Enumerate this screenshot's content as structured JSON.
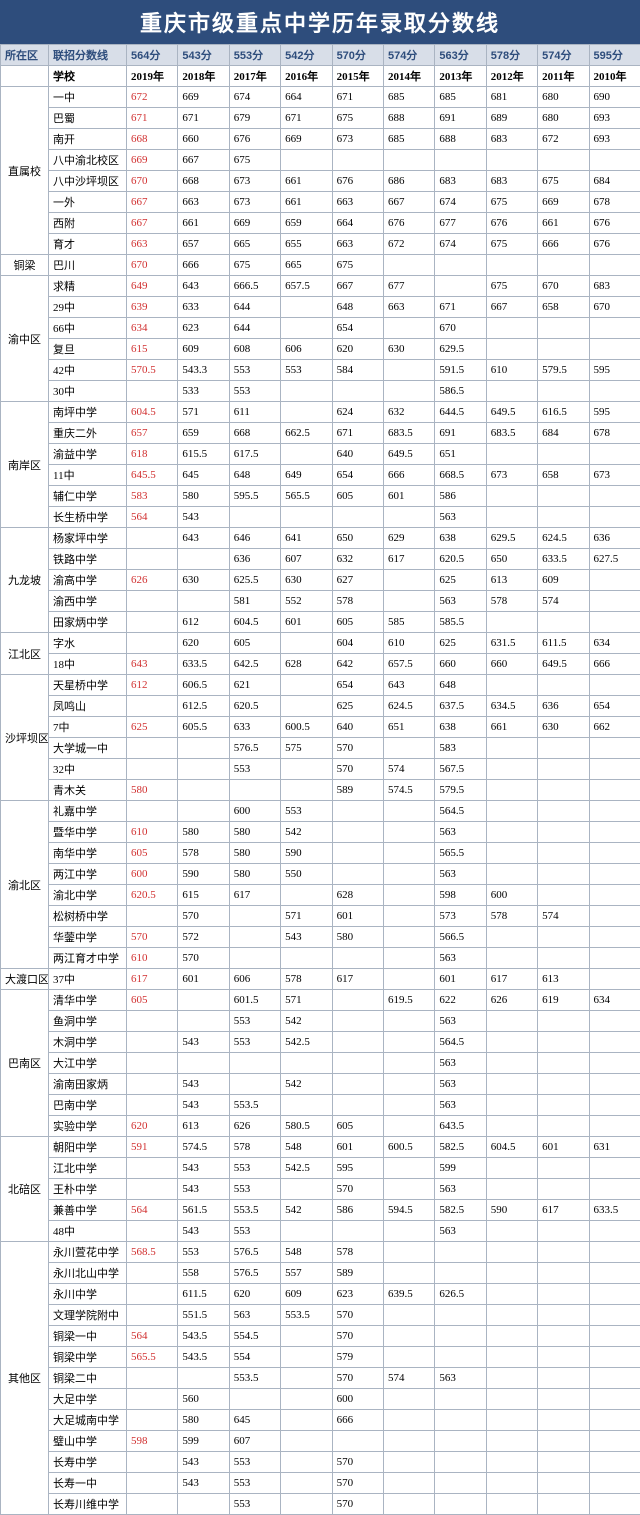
{
  "title": "重庆市级重点中学历年录取分数线",
  "header1": [
    "所在区",
    "联招分数线",
    "564分",
    "543分",
    "553分",
    "542分",
    "570分",
    "574分",
    "563分",
    "578分",
    "574分",
    "595分"
  ],
  "header2": [
    "",
    "学校",
    "2019年",
    "2018年",
    "2017年",
    "2016年",
    "2015年",
    "2014年",
    "2013年",
    "2012年",
    "2011年",
    "2010年"
  ],
  "groups": [
    {
      "district": "直属校",
      "rows": [
        [
          "一中",
          "672",
          "669",
          "674",
          "664",
          "671",
          "685",
          "685",
          "681",
          "680",
          "690"
        ],
        [
          "巴蜀",
          "671",
          "671",
          "679",
          "671",
          "675",
          "688",
          "691",
          "689",
          "680",
          "693"
        ],
        [
          "南开",
          "668",
          "660",
          "676",
          "669",
          "673",
          "685",
          "688",
          "683",
          "672",
          "693"
        ],
        [
          "八中渝北校区",
          "669",
          "667",
          "675",
          "",
          "",
          "",
          "",
          "",
          "",
          ""
        ],
        [
          "八中沙坪坝区",
          "670",
          "668",
          "673",
          "661",
          "676",
          "686",
          "683",
          "683",
          "675",
          "684"
        ],
        [
          "一外",
          "667",
          "663",
          "673",
          "661",
          "663",
          "667",
          "674",
          "675",
          "669",
          "678"
        ],
        [
          "西附",
          "667",
          "661",
          "669",
          "659",
          "664",
          "676",
          "677",
          "676",
          "661",
          "676"
        ],
        [
          "育才",
          "663",
          "657",
          "665",
          "655",
          "663",
          "672",
          "674",
          "675",
          "666",
          "676"
        ]
      ]
    },
    {
      "district": "铜梁",
      "rows": [
        [
          "巴川",
          "670",
          "666",
          "675",
          "665",
          "675",
          "",
          "",
          "",
          "",
          ""
        ]
      ]
    },
    {
      "district": "渝中区",
      "rows": [
        [
          "求精",
          "649",
          "643",
          "666.5",
          "657.5",
          "667",
          "677",
          "",
          "675",
          "670",
          "683"
        ],
        [
          "29中",
          "639",
          "633",
          "644",
          "",
          "648",
          "663",
          "671",
          "667",
          "658",
          "670"
        ],
        [
          "66中",
          "634",
          "623",
          "644",
          "",
          "654",
          "",
          "670",
          "",
          "",
          ""
        ],
        [
          "复旦",
          "615",
          "609",
          "608",
          "606",
          "620",
          "630",
          "629.5",
          "",
          "",
          ""
        ],
        [
          "42中",
          "570.5",
          "543.3",
          "553",
          "553",
          "584",
          "",
          "591.5",
          "610",
          "579.5",
          "595"
        ],
        [
          "30中",
          "",
          "533",
          "553",
          "",
          "",
          "",
          "586.5",
          "",
          "",
          ""
        ]
      ]
    },
    {
      "district": "南岸区",
      "rows": [
        [
          "南坪中学",
          "604.5",
          "571",
          "611",
          "",
          "624",
          "632",
          "644.5",
          "649.5",
          "616.5",
          "595"
        ],
        [
          "重庆二外",
          "657",
          "659",
          "668",
          "662.5",
          "671",
          "683.5",
          "691",
          "683.5",
          "684",
          "678"
        ],
        [
          "渝益中学",
          "618",
          "615.5",
          "617.5",
          "",
          "640",
          "649.5",
          "651",
          "",
          "",
          ""
        ],
        [
          "11中",
          "645.5",
          "645",
          "648",
          "649",
          "654",
          "666",
          "668.5",
          "673",
          "658",
          "673"
        ],
        [
          "辅仁中学",
          "583",
          "580",
          "595.5",
          "565.5",
          "605",
          "601",
          "586",
          "",
          "",
          ""
        ],
        [
          "长生桥中学",
          "564",
          "543",
          "",
          "",
          "",
          "",
          "563",
          "",
          "",
          ""
        ]
      ]
    },
    {
      "district": "九龙坡",
      "rows": [
        [
          "杨家坪中学",
          "",
          "643",
          "646",
          "641",
          "650",
          "629",
          "638",
          "629.5",
          "624.5",
          "636"
        ],
        [
          "铁路中学",
          "",
          "",
          "636",
          "607",
          "632",
          "617",
          "620.5",
          "650",
          "633.5",
          "627.5"
        ],
        [
          "渝高中学",
          "626",
          "630",
          "625.5",
          "630",
          "627",
          "",
          "625",
          "613",
          "609",
          ""
        ],
        [
          "渝西中学",
          "",
          "",
          "581",
          "552",
          "578",
          "",
          "563",
          "578",
          "574",
          ""
        ],
        [
          "田家炳中学",
          "",
          "612",
          "604.5",
          "601",
          "605",
          "585",
          "585.5",
          "",
          "",
          ""
        ]
      ]
    },
    {
      "district": "江北区",
      "rows": [
        [
          "字水",
          "",
          "620",
          "605",
          "",
          "604",
          "610",
          "625",
          "631.5",
          "611.5",
          "634"
        ],
        [
          "18中",
          "643",
          "633.5",
          "642.5",
          "628",
          "642",
          "657.5",
          "660",
          "660",
          "649.5",
          "666"
        ]
      ]
    },
    {
      "district": "沙坪坝区",
      "rows": [
        [
          "天星桥中学",
          "612",
          "606.5",
          "621",
          "",
          "654",
          "643",
          "648",
          "",
          "",
          ""
        ],
        [
          "凤鸣山",
          "",
          "612.5",
          "620.5",
          "",
          "625",
          "624.5",
          "637.5",
          "634.5",
          "636",
          "654"
        ],
        [
          "7中",
          "625",
          "605.5",
          "633",
          "600.5",
          "640",
          "651",
          "638",
          "661",
          "630",
          "662"
        ],
        [
          "大学城一中",
          "",
          "",
          "576.5",
          "575",
          "570",
          "",
          "583",
          "",
          "",
          ""
        ],
        [
          "32中",
          "",
          "",
          "553",
          "",
          "570",
          "574",
          "567.5",
          "",
          "",
          ""
        ],
        [
          "青木关",
          "580",
          "",
          "",
          "",
          "589",
          "574.5",
          "579.5",
          "",
          "",
          ""
        ]
      ]
    },
    {
      "district": "渝北区",
      "rows": [
        [
          "礼嘉中学",
          "",
          "",
          "600",
          "553",
          "",
          "",
          "564.5",
          "",
          "",
          ""
        ],
        [
          "暨华中学",
          "610",
          "580",
          "580",
          "542",
          "",
          "",
          "563",
          "",
          "",
          ""
        ],
        [
          "南华中学",
          "605",
          "578",
          "580",
          "590",
          "",
          "",
          "565.5",
          "",
          "",
          ""
        ],
        [
          "两江中学",
          "600",
          "590",
          "580",
          "550",
          "",
          "",
          "563",
          "",
          "",
          ""
        ],
        [
          "渝北中学",
          "620.5",
          "615",
          "617",
          "",
          "628",
          "",
          "598",
          "600",
          "",
          ""
        ],
        [
          "松树桥中学",
          "",
          "570",
          "",
          "571",
          "601",
          "",
          "573",
          "578",
          "574",
          ""
        ],
        [
          "华蓥中学",
          "570",
          "572",
          "",
          "543",
          "580",
          "",
          "566.5",
          "",
          "",
          ""
        ],
        [
          "两江育才中学",
          "610",
          "570",
          "",
          "",
          "",
          "",
          "563",
          "",
          "",
          ""
        ]
      ]
    },
    {
      "district": "大渡口区",
      "rows": [
        [
          "37中",
          "617",
          "601",
          "606",
          "578",
          "617",
          "",
          "601",
          "617",
          "613",
          ""
        ]
      ]
    },
    {
      "district": "巴南区",
      "rows": [
        [
          "清华中学",
          "605",
          "",
          "601.5",
          "571",
          "",
          "619.5",
          "622",
          "626",
          "619",
          "634"
        ],
        [
          "鱼洞中学",
          "",
          "",
          "553",
          "542",
          "",
          "",
          "563",
          "",
          "",
          ""
        ],
        [
          "木洞中学",
          "",
          "543",
          "553",
          "542.5",
          "",
          "",
          "564.5",
          "",
          "",
          ""
        ],
        [
          "大江中学",
          "",
          "",
          "",
          "",
          "",
          "",
          "563",
          "",
          "",
          ""
        ],
        [
          "渝南田家炳",
          "",
          "543",
          "",
          "542",
          "",
          "",
          "563",
          "",
          "",
          ""
        ],
        [
          "巴南中学",
          "",
          "543",
          "553.5",
          "",
          "",
          "",
          "563",
          "",
          "",
          ""
        ],
        [
          "实验中学",
          "620",
          "613",
          "626",
          "580.5",
          "605",
          "",
          "643.5",
          "",
          "",
          ""
        ]
      ]
    },
    {
      "district": "北碚区",
      "rows": [
        [
          "朝阳中学",
          "591",
          "574.5",
          "578",
          "548",
          "601",
          "600.5",
          "582.5",
          "604.5",
          "601",
          "631"
        ],
        [
          "江北中学",
          "",
          "543",
          "553",
          "542.5",
          "595",
          "",
          "599",
          "",
          "",
          ""
        ],
        [
          "王朴中学",
          "",
          "543",
          "553",
          "",
          "570",
          "",
          "563",
          "",
          "",
          ""
        ],
        [
          "兼善中学",
          "564",
          "561.5",
          "553.5",
          "542",
          "586",
          "594.5",
          "582.5",
          "590",
          "617",
          "633.5"
        ],
        [
          "48中",
          "",
          "543",
          "553",
          "",
          "",
          "",
          "563",
          "",
          "",
          ""
        ]
      ]
    },
    {
      "district": "其他区",
      "rows": [
        [
          "永川萱花中学",
          "568.5",
          "553",
          "576.5",
          "548",
          "578",
          "",
          "",
          "",
          "",
          ""
        ],
        [
          "永川北山中学",
          "",
          "558",
          "576.5",
          "557",
          "589",
          "",
          "",
          "",
          "",
          ""
        ],
        [
          "永川中学",
          "",
          "611.5",
          "620",
          "609",
          "623",
          "639.5",
          "626.5",
          "",
          "",
          ""
        ],
        [
          "文理学院附中",
          "",
          "551.5",
          "563",
          "553.5",
          "570",
          "",
          "",
          "",
          "",
          ""
        ],
        [
          "铜梁一中",
          "564",
          "543.5",
          "554.5",
          "",
          "570",
          "",
          "",
          "",
          "",
          ""
        ],
        [
          "铜梁中学",
          "565.5",
          "543.5",
          "554",
          "",
          "579",
          "",
          "",
          "",
          "",
          ""
        ],
        [
          "铜梁二中",
          "",
          "",
          "553.5",
          "",
          "570",
          "574",
          "563",
          "",
          "",
          ""
        ],
        [
          "大足中学",
          "",
          "560",
          "",
          "",
          "600",
          "",
          "",
          "",
          "",
          ""
        ],
        [
          "大足城南中学",
          "",
          "580",
          "645",
          "",
          "666",
          "",
          "",
          "",
          "",
          ""
        ],
        [
          "璧山中学",
          "598",
          "599",
          "607",
          "",
          "",
          "",
          "",
          "",
          "",
          ""
        ],
        [
          "长寿中学",
          "",
          "543",
          "553",
          "",
          "570",
          "",
          "",
          "",
          "",
          ""
        ],
        [
          "长寿一中",
          "",
          "543",
          "553",
          "",
          "570",
          "",
          "",
          "",
          "",
          ""
        ],
        [
          "长寿川维中学",
          "",
          "",
          "553",
          "",
          "570",
          "",
          "",
          "",
          "",
          ""
        ]
      ]
    }
  ]
}
